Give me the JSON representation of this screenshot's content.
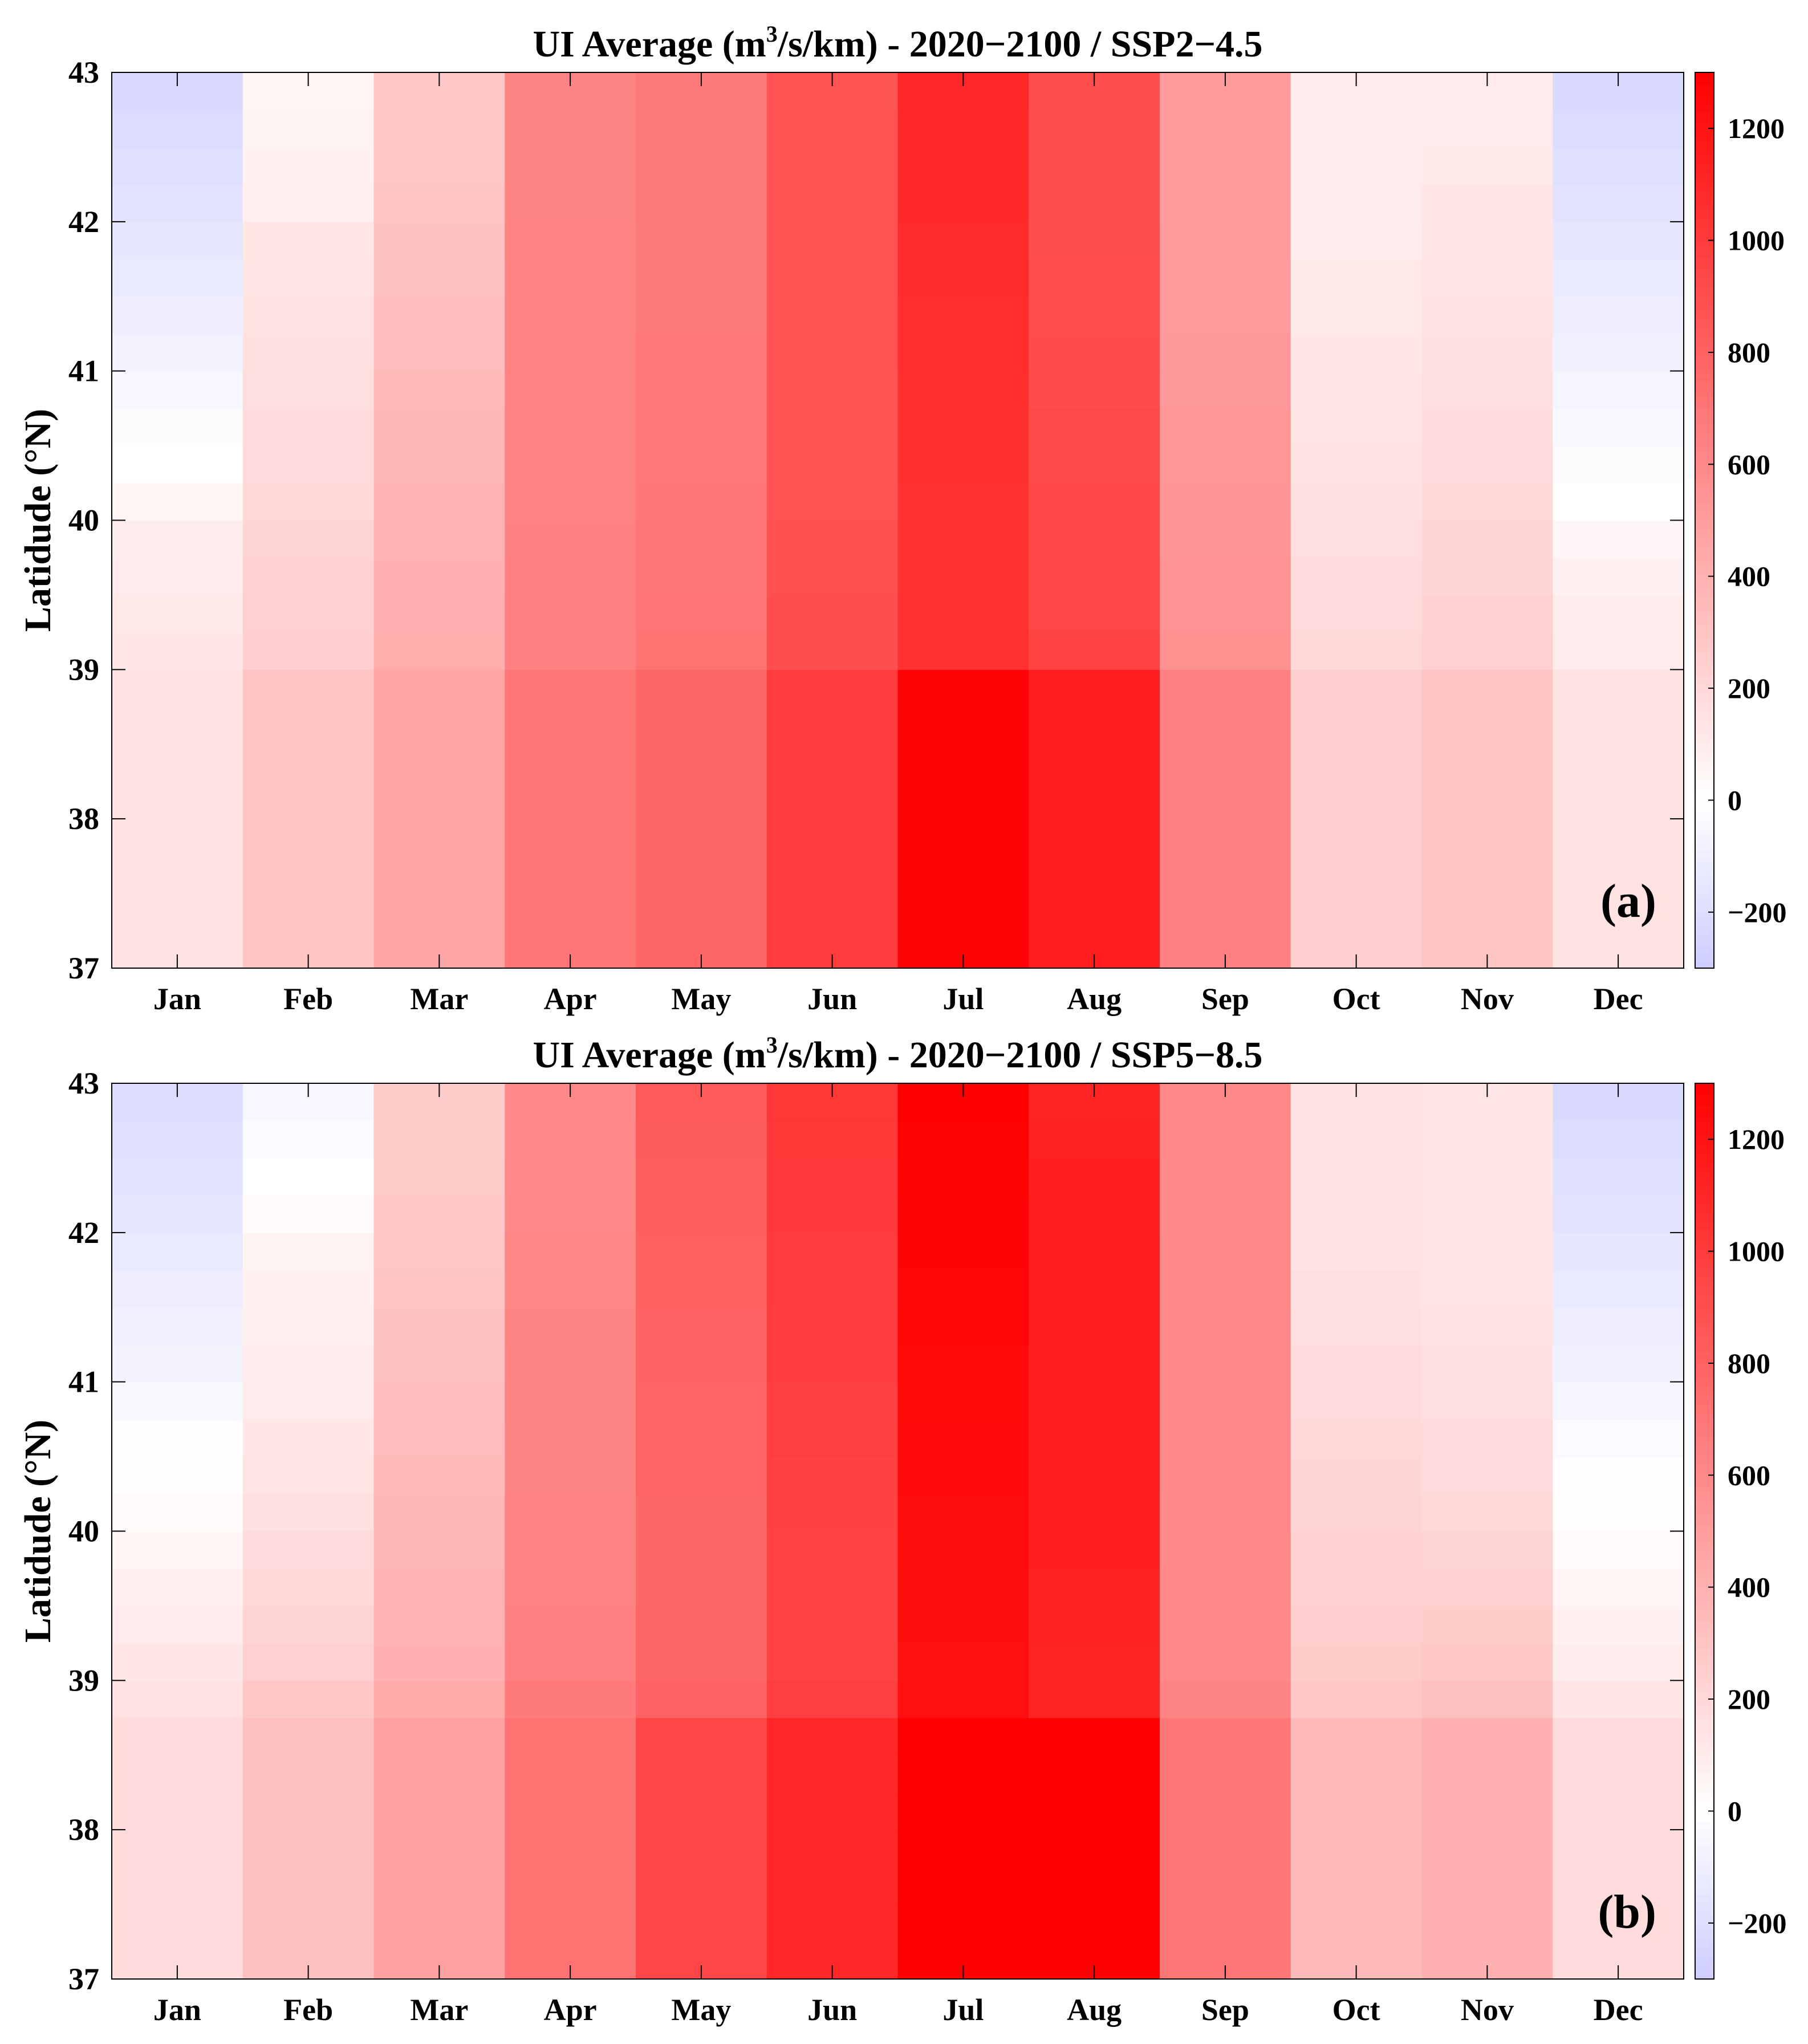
{
  "chart_data": [
    {
      "type": "heatmap",
      "panel_label": "(a)",
      "title": {
        "prefix": "UI Average (m",
        "sup": "3",
        "suffix": "/s/km) - 2020−2100 / SSP2−4.5"
      },
      "ylabel": "Latidude (°N)",
      "xlabel": "",
      "months": [
        "Jan",
        "Feb",
        "Mar",
        "Apr",
        "May",
        "Jun",
        "Jul",
        "Aug",
        "Sep",
        "Oct",
        "Nov",
        "Dec"
      ],
      "latitude_rows": [
        37.0,
        37.25,
        37.5,
        37.75,
        38.0,
        38.25,
        38.5,
        38.75,
        39.0,
        39.25,
        39.5,
        39.75,
        40.0,
        40.25,
        40.5,
        40.75,
        41.0,
        41.25,
        41.5,
        41.75,
        42.0,
        42.25,
        42.5,
        42.75
      ],
      "ylim": [
        37,
        43
      ],
      "yticks": [
        37,
        38,
        39,
        40,
        41,
        42,
        43
      ],
      "color_limits": [
        -300,
        1300
      ],
      "colorbar_ticks": [
        -200,
        0,
        200,
        400,
        600,
        800,
        1000,
        1200
      ],
      "values_by_month": [
        [
          150,
          150,
          150,
          150,
          150,
          150,
          150,
          150,
          120,
          110,
          100,
          90,
          50,
          0,
          -20,
          -50,
          -80,
          -100,
          -120,
          -150,
          -170,
          -190,
          -210,
          -230
        ],
        [
          300,
          300,
          300,
          300,
          300,
          300,
          300,
          300,
          250,
          240,
          230,
          220,
          200,
          190,
          180,
          170,
          160,
          150,
          130,
          120,
          80,
          70,
          60,
          50
        ],
        [
          450,
          450,
          450,
          450,
          450,
          450,
          450,
          450,
          420,
          410,
          400,
          390,
          380,
          370,
          360,
          350,
          340,
          330,
          320,
          310,
          300,
          290,
          280,
          280
        ],
        [
          700,
          700,
          700,
          700,
          700,
          700,
          700,
          700,
          640,
          640,
          640,
          640,
          630,
          630,
          630,
          630,
          630,
          630,
          630,
          630,
          620,
          620,
          620,
          620
        ],
        [
          780,
          780,
          780,
          780,
          780,
          780,
          780,
          780,
          720,
          710,
          700,
          700,
          700,
          690,
          690,
          690,
          690,
          680,
          680,
          680,
          680,
          680,
          680,
          680
        ],
        [
          1000,
          1000,
          1000,
          1000,
          1000,
          1000,
          1000,
          1000,
          900,
          900,
          890,
          890,
          880,
          880,
          880,
          880,
          880,
          880,
          880,
          880,
          880,
          880,
          880,
          880
        ],
        [
          1280,
          1280,
          1280,
          1280,
          1280,
          1280,
          1280,
          1280,
          1050,
          1050,
          1050,
          1050,
          1050,
          1060,
          1060,
          1060,
          1070,
          1070,
          1080,
          1080,
          1090,
          1090,
          1090,
          1100
        ],
        [
          1150,
          1150,
          1150,
          1150,
          1150,
          1150,
          1150,
          1150,
          960,
          950,
          950,
          940,
          940,
          930,
          930,
          920,
          920,
          910,
          910,
          900,
          900,
          900,
          900,
          900
        ],
        [
          650,
          650,
          650,
          650,
          650,
          650,
          650,
          650,
          560,
          550,
          550,
          540,
          540,
          530,
          530,
          520,
          520,
          510,
          510,
          510,
          500,
          500,
          500,
          500
        ],
        [
          250,
          250,
          250,
          250,
          250,
          250,
          250,
          250,
          200,
          190,
          180,
          170,
          160,
          150,
          140,
          130,
          120,
          110,
          110,
          100,
          100,
          100,
          100,
          100
        ],
        [
          300,
          300,
          300,
          300,
          300,
          300,
          300,
          300,
          240,
          230,
          220,
          210,
          200,
          190,
          180,
          170,
          160,
          150,
          140,
          130,
          120,
          110,
          100,
          100
        ],
        [
          150,
          150,
          150,
          150,
          150,
          150,
          150,
          150,
          100,
          90,
          70,
          40,
          0,
          -20,
          -40,
          -60,
          -90,
          -110,
          -130,
          -150,
          -170,
          -190,
          -210,
          -230
        ]
      ]
    },
    {
      "type": "heatmap",
      "panel_label": "(b)",
      "title": {
        "prefix": "UI Average (m",
        "sup": "3",
        "suffix": "/s/km) - 2020−2100 / SSP5−8.5"
      },
      "ylabel": "Latidude (°N)",
      "xlabel": "",
      "months": [
        "Jan",
        "Feb",
        "Mar",
        "Apr",
        "May",
        "Jun",
        "Jul",
        "Aug",
        "Sep",
        "Oct",
        "Nov",
        "Dec"
      ],
      "latitude_rows": [
        37.0,
        37.25,
        37.5,
        37.75,
        38.0,
        38.25,
        38.5,
        38.75,
        39.0,
        39.25,
        39.5,
        39.75,
        40.0,
        40.25,
        40.5,
        40.75,
        41.0,
        41.25,
        41.5,
        41.75,
        42.0,
        42.25,
        42.5,
        42.75
      ],
      "ylim": [
        37,
        43
      ],
      "yticks": [
        37,
        38,
        39,
        40,
        41,
        42,
        43
      ],
      "color_limits": [
        -300,
        1300
      ],
      "colorbar_ticks": [
        -200,
        0,
        200,
        400,
        600,
        800,
        1000,
        1200
      ],
      "values_by_month": [
        [
          180,
          180,
          180,
          180,
          180,
          180,
          180,
          150,
          120,
          100,
          80,
          50,
          30,
          10,
          -10,
          -40,
          -70,
          -90,
          -110,
          -130,
          -150,
          -170,
          -190,
          -210
        ],
        [
          320,
          320,
          320,
          320,
          320,
          320,
          320,
          280,
          240,
          220,
          200,
          180,
          160,
          140,
          120,
          100,
          90,
          80,
          70,
          60,
          20,
          0,
          -30,
          -50
        ],
        [
          480,
          480,
          480,
          480,
          480,
          480,
          480,
          430,
          400,
          390,
          380,
          370,
          360,
          350,
          340,
          330,
          320,
          310,
          300,
          290,
          280,
          270,
          260,
          260
        ],
        [
          720,
          720,
          720,
          720,
          720,
          720,
          720,
          680,
          640,
          640,
          630,
          630,
          630,
          620,
          620,
          620,
          620,
          620,
          610,
          610,
          600,
          600,
          600,
          600
        ],
        [
          950,
          950,
          950,
          950,
          950,
          950,
          950,
          800,
          780,
          780,
          780,
          780,
          780,
          790,
          790,
          790,
          800,
          800,
          810,
          810,
          820,
          820,
          830,
          840
        ],
        [
          1100,
          1100,
          1100,
          1100,
          1100,
          1100,
          1100,
          980,
          960,
          960,
          960,
          960,
          970,
          970,
          980,
          980,
          990,
          990,
          1000,
          1000,
          1010,
          1010,
          1020,
          1020
        ],
        [
          1300,
          1300,
          1300,
          1300,
          1300,
          1300,
          1300,
          1220,
          1220,
          1230,
          1230,
          1240,
          1240,
          1250,
          1250,
          1260,
          1260,
          1270,
          1270,
          1280,
          1280,
          1290,
          1290,
          1300
        ],
        [
          1300,
          1300,
          1300,
          1300,
          1300,
          1300,
          1300,
          1120,
          1120,
          1130,
          1130,
          1140,
          1140,
          1150,
          1150,
          1150,
          1150,
          1150,
          1150,
          1150,
          1140,
          1140,
          1130,
          1120
        ],
        [
          700,
          700,
          700,
          700,
          700,
          700,
          700,
          620,
          600,
          600,
          600,
          600,
          600,
          600,
          600,
          600,
          600,
          600,
          600,
          600,
          600,
          600,
          600,
          600
        ],
        [
          350,
          350,
          350,
          350,
          350,
          350,
          350,
          280,
          260,
          250,
          240,
          230,
          220,
          210,
          200,
          190,
          180,
          170,
          160,
          150,
          150,
          150,
          150,
          150
        ],
        [
          400,
          400,
          400,
          400,
          400,
          400,
          400,
          320,
          280,
          260,
          240,
          220,
          200,
          190,
          180,
          170,
          160,
          150,
          140,
          130,
          130,
          130,
          130,
          130
        ],
        [
          180,
          180,
          180,
          180,
          180,
          180,
          180,
          130,
          90,
          70,
          50,
          30,
          10,
          -10,
          -30,
          -60,
          -90,
          -110,
          -130,
          -150,
          -170,
          -190,
          -210,
          -230
        ]
      ]
    }
  ]
}
